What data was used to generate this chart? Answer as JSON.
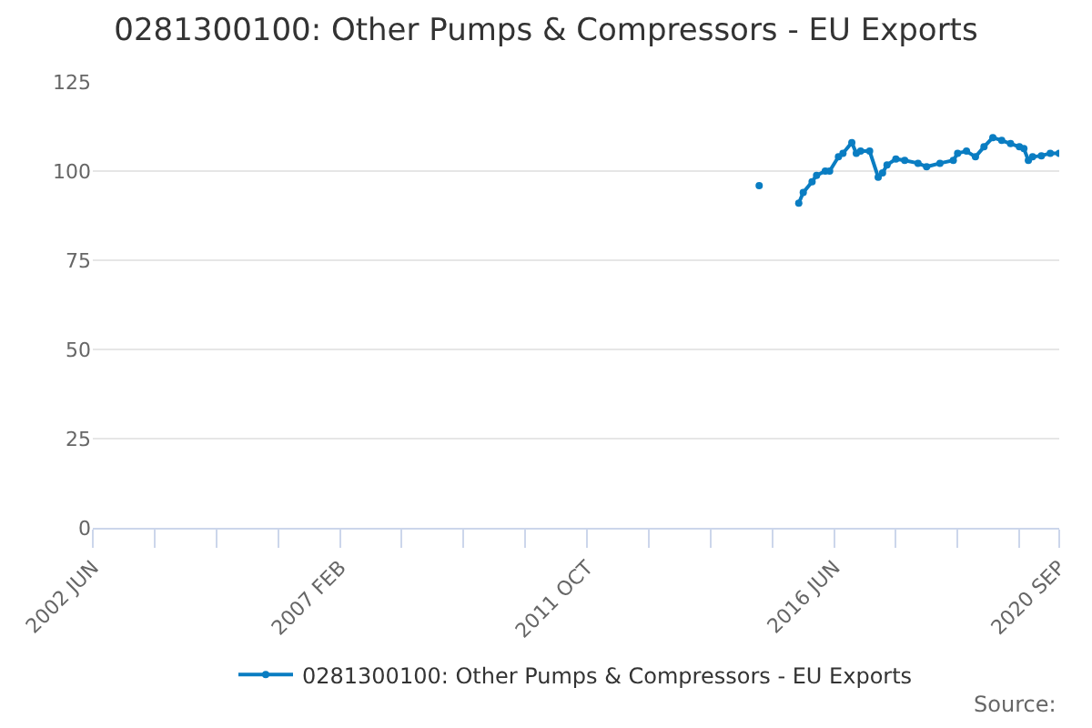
{
  "chart_data": {
    "type": "line",
    "title": "0281300100: Other Pumps & Compressors - EU Exports",
    "x": [
      "2015-01",
      "2015-05",
      "2015-10",
      "2015-11",
      "2016-01",
      "2016-02",
      "2016-04",
      "2016-05",
      "2016-07",
      "2016-08",
      "2016-10",
      "2016-11",
      "2016-12",
      "2017-02",
      "2017-04",
      "2017-05",
      "2017-06",
      "2017-08",
      "2017-10",
      "2018-01",
      "2018-03",
      "2018-06",
      "2018-09",
      "2018-10",
      "2018-12",
      "2019-02",
      "2019-04",
      "2019-06",
      "2019-08",
      "2019-10",
      "2019-12",
      "2020-01",
      "2020-02",
      "2020-03",
      "2020-05",
      "2020-07",
      "2020-09"
    ],
    "series": [
      {
        "name": "0281300100: Other Pumps & Compressors - EU Exports",
        "color": "#0a7dc2",
        "values": [
          95.9,
          null,
          91,
          94,
          97,
          98.8,
          100,
          100,
          104,
          105,
          108,
          105,
          105.6,
          105.6,
          98.3,
          99.5,
          101.7,
          103.4,
          103,
          102.2,
          101.2,
          102.2,
          103,
          105,
          105.6,
          104,
          106.8,
          109.4,
          108.6,
          107.7,
          106.8,
          106.3,
          103,
          104,
          104.3,
          105,
          105
        ]
      }
    ],
    "xlim": [
      "2002-06",
      "2020-09"
    ],
    "xticks": [
      {
        "value": "2002-06",
        "label": "2002 JUN"
      },
      {
        "value": "2003-08",
        "label": null
      },
      {
        "value": "2004-10",
        "label": null
      },
      {
        "value": "2005-12",
        "label": null
      },
      {
        "value": "2007-02",
        "label": "2007 FEB"
      },
      {
        "value": "2008-04",
        "label": null
      },
      {
        "value": "2009-06",
        "label": null
      },
      {
        "value": "2010-08",
        "label": null
      },
      {
        "value": "2011-10",
        "label": "2011 OCT"
      },
      {
        "value": "2012-12",
        "label": null
      },
      {
        "value": "2014-02",
        "label": null
      },
      {
        "value": "2015-04",
        "label": null
      },
      {
        "value": "2016-06",
        "label": "2016 JUN"
      },
      {
        "value": "2017-08",
        "label": null
      },
      {
        "value": "2018-10",
        "label": null
      },
      {
        "value": "2019-12",
        "label": null
      },
      {
        "value": "2020-09",
        "label": "2020 SEP"
      }
    ],
    "ylim": [
      0,
      125
    ],
    "yticks": [
      0,
      25,
      50,
      75,
      100,
      125
    ],
    "grid": "y",
    "legend": "bottom",
    "marker": "circle",
    "line_style": "solid",
    "annotations": [
      "Source:"
    ]
  }
}
